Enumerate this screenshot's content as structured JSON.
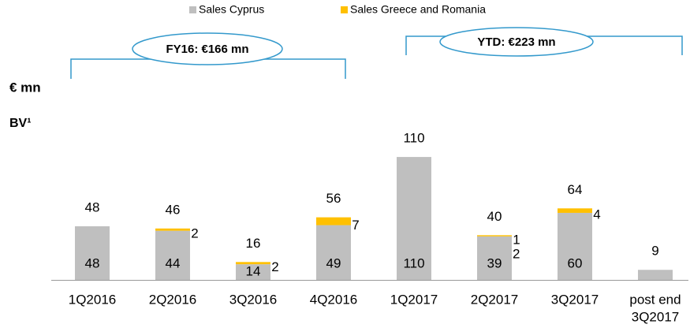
{
  "chart_data": {
    "type": "stacked_bar",
    "unit_label": "€ mn",
    "section_label": "BV¹",
    "categories": [
      "1Q2016",
      "2Q2016",
      "3Q2016",
      "4Q2016",
      "1Q2017",
      "2Q2017",
      "3Q2017",
      [
        "post end",
        "3Q2017"
      ]
    ],
    "series": [
      {
        "name": "Sales Cyprus",
        "color": "#bfbfbf",
        "values": [
          48,
          44,
          14,
          49,
          110,
          39,
          60,
          9
        ],
        "value_labels": [
          "48",
          "44",
          "14",
          "49",
          "110",
          "39",
          "60",
          null
        ]
      },
      {
        "name": "Sales Greece and Romania",
        "color": "#ffc000",
        "values": [
          null,
          2,
          2,
          7,
          null,
          1,
          4,
          null
        ],
        "value_labels": [
          null,
          "2",
          "2",
          "7",
          null,
          "1",
          "4",
          null
        ]
      }
    ],
    "totals": [
      48,
      46,
      16,
      56,
      110,
      40,
      64,
      9
    ],
    "footnote_marker": "2",
    "annotations": [
      "FY16: €166 mn",
      "YTD: €223 mn"
    ],
    "ylim": [
      0,
      115
    ]
  }
}
